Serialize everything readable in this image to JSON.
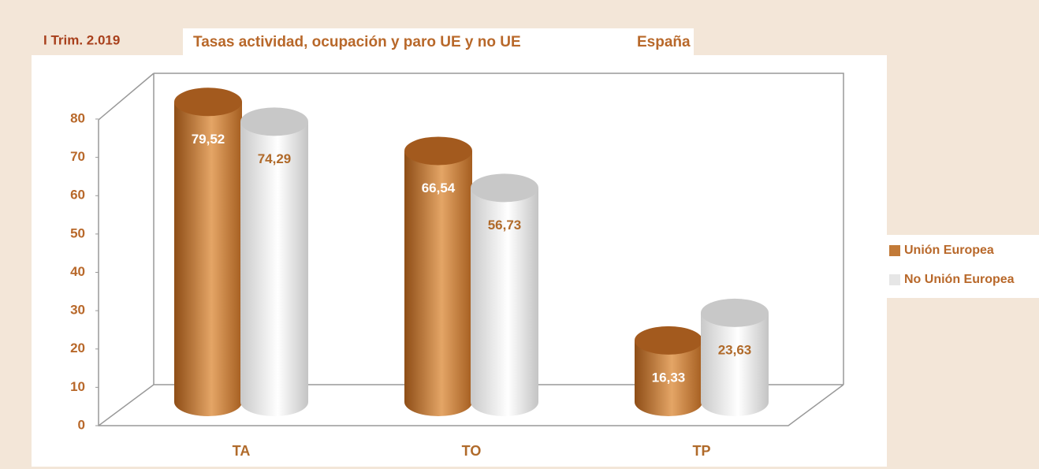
{
  "chart_data": {
    "type": "bar3d",
    "title": "Tasas actividad, ocupación y paro UE y no UE",
    "subtitle": "España",
    "period": "I Trim. 2.019",
    "categories": [
      "TA",
      "TO",
      "TP"
    ],
    "series": [
      {
        "name": "Unión Europea",
        "color": "#c27a38",
        "values": [
          79.52,
          66.54,
          16.33
        ],
        "value_labels": [
          "79,52",
          "66,54",
          "16,33"
        ]
      },
      {
        "name": "No Unión Europea",
        "color": "#e6e6e6",
        "values": [
          74.29,
          56.73,
          23.63
        ],
        "value_labels": [
          "74,29",
          "56,73",
          "23,63"
        ]
      }
    ],
    "ylim": [
      0,
      80
    ],
    "yticks": [
      0,
      10,
      20,
      30,
      40,
      50,
      60,
      70,
      80
    ],
    "legend": "right"
  }
}
